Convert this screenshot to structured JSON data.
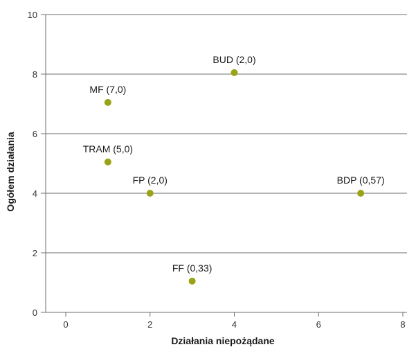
{
  "chart_data": {
    "type": "scatter",
    "title": "",
    "xlabel": "Działania niepożądane",
    "ylabel": "Ogółem działania",
    "xlim": [
      -0.5,
      8
    ],
    "ylim": [
      0,
      10
    ],
    "xticks": [
      0,
      2,
      4,
      6,
      8
    ],
    "yticks": [
      0,
      2,
      4,
      6,
      8,
      10
    ],
    "grid": "horizontal",
    "marker_color": "#9aa316",
    "points": [
      {
        "label": "BUD (2,0)",
        "x": 4,
        "y": 8.05
      },
      {
        "label": "MF (7,0)",
        "x": 1,
        "y": 7.05
      },
      {
        "label": "TRAM (5,0)",
        "x": 1,
        "y": 5.05
      },
      {
        "label": "FP (2,0)",
        "x": 2,
        "y": 4.0
      },
      {
        "label": "BDP (0,57)",
        "x": 7,
        "y": 4.0
      },
      {
        "label": "FF (0,33)",
        "x": 3,
        "y": 1.05
      }
    ]
  }
}
